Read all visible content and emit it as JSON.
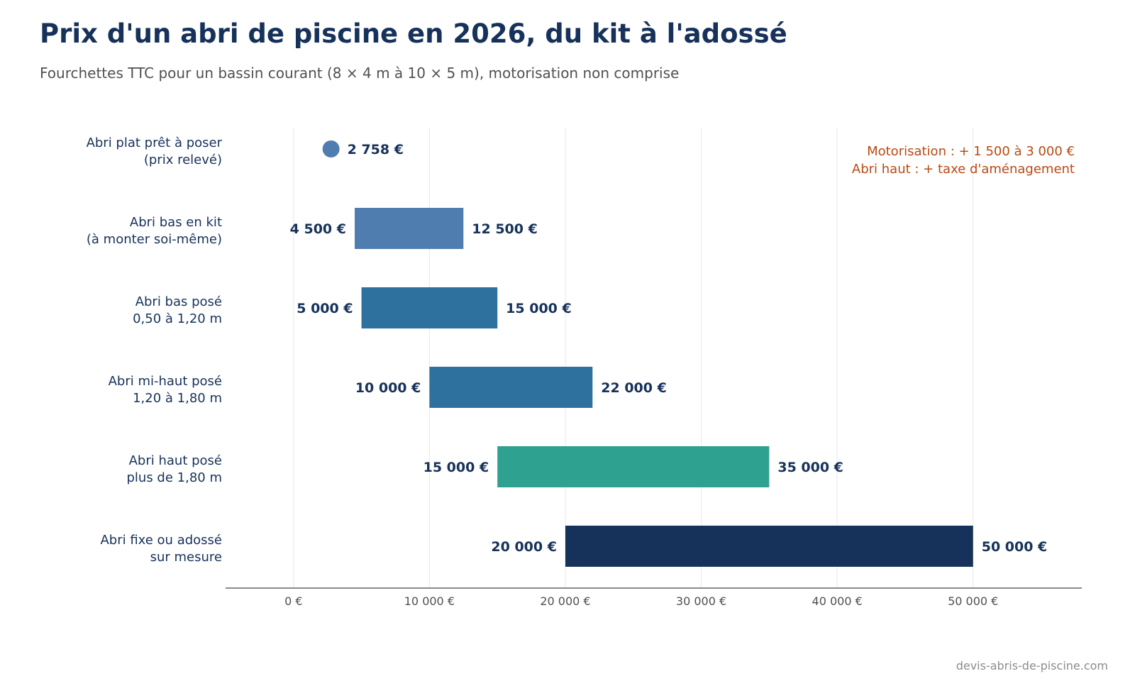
{
  "header": {
    "title": "Prix d'un abri de piscine en 2026, du kit à l'adossé",
    "subtitle": "Fourchettes TTC pour un bassin courant (8 × 4 m à 10 × 5 m), motorisation non comprise"
  },
  "footer": {
    "source": "devis-abris-de-piscine.com"
  },
  "chart_data": {
    "type": "bar",
    "orientation": "horizontal-range",
    "xlim": [
      -5000,
      58000
    ],
    "xticks": [
      {
        "value": 0,
        "label": "0 €"
      },
      {
        "value": 10000,
        "label": "10 000 €"
      },
      {
        "value": 20000,
        "label": "20 000 €"
      },
      {
        "value": 30000,
        "label": "30 000 €"
      },
      {
        "value": 40000,
        "label": "40 000 €"
      },
      {
        "value": 50000,
        "label": "50 000 €"
      }
    ],
    "grid": "vertical",
    "categories": [
      {
        "label": [
          "Abri plat prêt à poser",
          "(prix relevé)"
        ],
        "point": 2758,
        "point_label": "2 758 €",
        "color": "#4f7db0"
      },
      {
        "label": [
          "Abri bas en kit",
          "(à monter soi-même)"
        ],
        "min": 4500,
        "max": 12500,
        "min_label": "4 500 €",
        "max_label": "12 500 €",
        "color": "#4f7db0"
      },
      {
        "label": [
          "Abri bas posé",
          "0,50 à 1,20 m"
        ],
        "min": 5000,
        "max": 15000,
        "min_label": "5 000 €",
        "max_label": "15 000 €",
        "color": "#2e709e"
      },
      {
        "label": [
          "Abri mi-haut posé",
          "1,20 à 1,80 m"
        ],
        "min": 10000,
        "max": 22000,
        "min_label": "10 000 €",
        "max_label": "22 000 €",
        "color": "#2e709e"
      },
      {
        "label": [
          "Abri haut posé",
          "plus de 1,80 m"
        ],
        "min": 15000,
        "max": 35000,
        "min_label": "15 000 €",
        "max_label": "35 000 €",
        "color": "#2fa190"
      },
      {
        "label": [
          "Abri fixe ou adossé",
          "sur mesure"
        ],
        "min": 20000,
        "max": 50000,
        "min_label": "20 000 €",
        "max_label": "50 000 €",
        "color": "#17325a"
      }
    ],
    "annotations": [
      "Motorisation : + 1 500 à 3 000 €",
      "Abri haut : + taxe d'aménagement"
    ],
    "colors": {
      "text": "#17325a",
      "annotation": "#b84a14",
      "grid": "#e8e8e8",
      "axis": "#444444",
      "tick_label": "#505050"
    }
  }
}
